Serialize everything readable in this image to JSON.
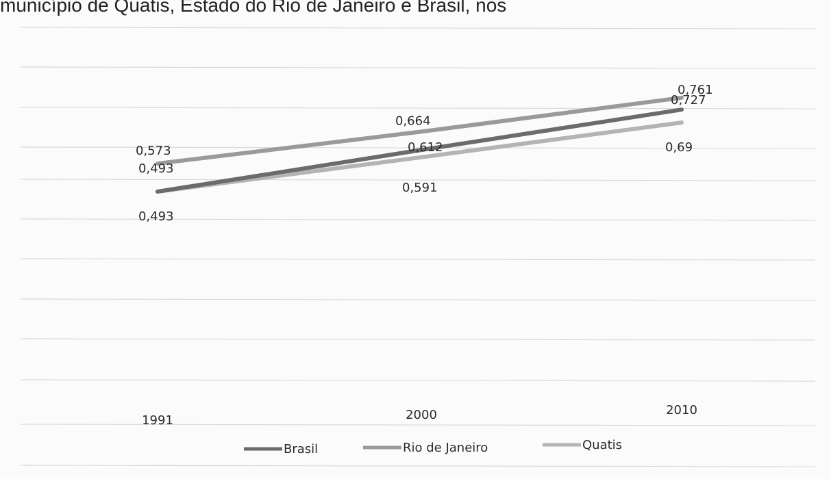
{
  "caption": "município de Quatis, Estado do Rio de Janeiro e Brasil, nos",
  "chart_data": {
    "type": "line",
    "categories": [
      "1991",
      "2000",
      "2010"
    ],
    "series": [
      {
        "name": "Brasil",
        "values": [
          0.493,
          0.612,
          0.727
        ],
        "labels": [
          "0,493",
          "0,612",
          "0,727"
        ],
        "color": "#6b6b6b"
      },
      {
        "name": "Rio de Janeiro",
        "values": [
          0.573,
          0.664,
          0.761
        ],
        "labels": [
          "0,573",
          "0,664",
          "0,761"
        ],
        "color": "#9a9a9a"
      },
      {
        "name": "Quatis",
        "values": [
          0.493,
          0.591,
          0.69
        ],
        "labels": [
          "0,493",
          "0,591",
          "0,69"
        ],
        "color": "#b4b4b4"
      }
    ],
    "grid": true,
    "legend": "bottom"
  }
}
